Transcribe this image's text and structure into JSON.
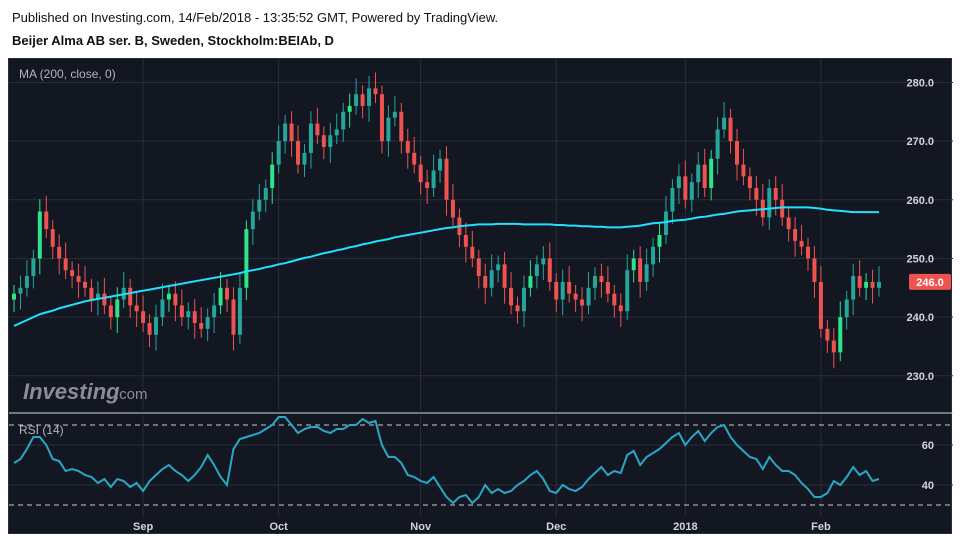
{
  "header": {
    "published": "Published on Investing.com, 14/Feb/2018 - 13:35:52 GMT, Powered by TradingView.",
    "symbol": "Beijer Alma AB ser. B, Sweden, Stockholm:BEIAb, D"
  },
  "indicator_label": "MA (200, close, 0)",
  "rsi_label": "RSI (14)",
  "logo": {
    "brand": "Investing",
    "suffix": ".com"
  },
  "price_tag": "246.0",
  "colors": {
    "up": "#26a69a",
    "up_bright": "#2ee38a",
    "down": "#ef5350",
    "ma": "#22e1ff",
    "rsi": "#2aa6c6",
    "background": "#131722",
    "grid": "#2a2e39"
  },
  "chart_data": [
    {
      "type": "candlestick",
      "title": "Beijer Alma AB ser. B, Sweden, Stockholm:BEIAb, D",
      "ylim": [
        224,
        284
      ],
      "y_ticks": [
        "280.0",
        "270.0",
        "260.0",
        "250.0",
        "240.0",
        "230.0"
      ],
      "x_ticks": [
        {
          "label": "Sep",
          "index": 20
        },
        {
          "label": "Oct",
          "index": 41
        },
        {
          "label": "Nov",
          "index": 63
        },
        {
          "label": "Dec",
          "index": 84
        },
        {
          "label": "2018",
          "index": 104
        },
        {
          "label": "Feb",
          "index": 125
        }
      ],
      "last_price": 246.0,
      "close": [
        244,
        245,
        247,
        250,
        258,
        255,
        252,
        250,
        248,
        247,
        246,
        245,
        243,
        244,
        242,
        240,
        243,
        245,
        242,
        241,
        239,
        237,
        240,
        243,
        244,
        242,
        240,
        241,
        239,
        238,
        240,
        242,
        245,
        243,
        237,
        245,
        255,
        258,
        260,
        262,
        266,
        270,
        273,
        270,
        266,
        268,
        273,
        271,
        269,
        271,
        272,
        275,
        276,
        278,
        276,
        279,
        278,
        270,
        274,
        275,
        270,
        268,
        266,
        263,
        262,
        265,
        267,
        260,
        257,
        254,
        252,
        250,
        247,
        245,
        248,
        249,
        245,
        242,
        241,
        245,
        247,
        249,
        250,
        246,
        243,
        246,
        244,
        243,
        242,
        245,
        247,
        246,
        244,
        242,
        241,
        248,
        250,
        246,
        249,
        252,
        254,
        258,
        262,
        264,
        260,
        263,
        266,
        262,
        267,
        272,
        274,
        270,
        266,
        264,
        262,
        260,
        257,
        262,
        260,
        257,
        255,
        253,
        252,
        250,
        246,
        238,
        236,
        234,
        240,
        243,
        247,
        245,
        246,
        245,
        246
      ],
      "ma200": [
        238.5,
        239.0,
        239.5,
        240.0,
        240.5,
        240.8,
        241.1,
        241.5,
        241.8,
        242.1,
        242.4,
        242.7,
        242.9,
        243.1,
        243.3,
        243.5,
        243.7,
        243.9,
        244.1,
        244.3,
        244.5,
        244.7,
        244.9,
        245.1,
        245.3,
        245.5,
        245.7,
        245.9,
        246.1,
        246.3,
        246.5,
        246.7,
        246.9,
        247.1,
        247.3,
        247.5,
        247.8,
        248.0,
        248.2,
        248.5,
        248.7,
        249.0,
        249.2,
        249.5,
        249.8,
        250.1,
        250.3,
        250.6,
        250.9,
        251.1,
        251.4,
        251.6,
        251.9,
        252.1,
        252.4,
        252.6,
        252.9,
        253.1,
        253.3,
        253.6,
        253.8,
        254.0,
        254.2,
        254.4,
        254.6,
        254.8,
        255.0,
        255.2,
        255.3,
        255.5,
        255.6,
        255.7,
        255.8,
        255.8,
        255.8,
        255.9,
        255.9,
        255.9,
        255.9,
        255.8,
        255.8,
        255.8,
        255.8,
        255.8,
        255.7,
        255.7,
        255.6,
        255.6,
        255.5,
        255.5,
        255.4,
        255.4,
        255.3,
        255.3,
        255.3,
        255.4,
        255.5,
        255.6,
        255.8,
        256.0,
        256.1,
        256.2,
        256.4,
        256.5,
        256.6,
        256.8,
        257.0,
        257.1,
        257.3,
        257.5,
        257.6,
        257.8,
        258.0,
        258.1,
        258.2,
        258.3,
        258.4,
        258.5,
        258.6,
        258.7,
        258.7,
        258.7,
        258.7,
        258.7,
        258.6,
        258.5,
        258.3,
        258.2,
        258.1,
        258.0,
        257.9,
        257.9,
        257.9,
        257.9,
        257.9
      ]
    },
    {
      "type": "line",
      "title": "RSI (14)",
      "ylim": [
        25,
        75
      ],
      "y_ticks": [
        "60",
        "40"
      ],
      "guide_levels": [
        70,
        30
      ],
      "values": [
        51,
        53,
        58,
        64,
        64,
        60,
        53,
        52,
        47,
        48,
        47,
        45,
        44,
        41,
        43,
        39,
        43,
        42,
        39,
        41,
        37,
        42,
        45,
        48,
        50,
        47,
        45,
        42,
        45,
        49,
        55,
        50,
        44,
        40,
        58,
        63,
        64,
        65,
        66,
        68,
        70,
        74,
        74,
        70,
        66,
        68,
        69,
        69,
        67,
        66,
        68,
        68,
        70,
        70,
        73,
        71,
        72,
        60,
        54,
        54,
        51,
        45,
        44,
        42,
        41,
        44,
        39,
        34,
        31,
        34,
        35,
        31,
        34,
        40,
        36,
        38,
        36,
        37,
        40,
        42,
        45,
        47,
        43,
        37,
        36,
        40,
        38,
        37,
        39,
        43,
        46,
        49,
        45,
        47,
        46,
        55,
        57,
        50,
        54,
        56,
        58,
        61,
        64,
        66,
        60,
        64,
        67,
        62,
        66,
        69,
        70,
        64,
        60,
        57,
        54,
        53,
        48,
        54,
        50,
        47,
        47,
        45,
        41,
        38,
        34,
        34,
        36,
        42,
        40,
        44,
        49,
        45,
        47,
        42,
        43
      ]
    }
  ]
}
